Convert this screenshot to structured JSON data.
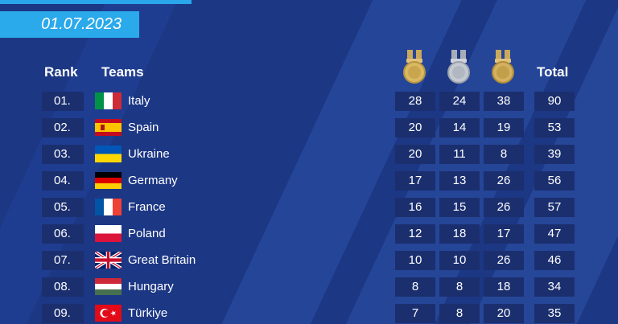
{
  "date": "01.07.2023",
  "headers": {
    "rank": "Rank",
    "teams": "Teams",
    "total": "Total"
  },
  "colors": {
    "background": "#1c3784",
    "accent": "#2aa9eb",
    "cell": "#1b2f6f"
  },
  "rows": [
    {
      "rank": "01.",
      "team": "Italy",
      "flag": "italy-flag",
      "gold": "28",
      "silver": "24",
      "bronze": "38",
      "total": "90"
    },
    {
      "rank": "02.",
      "team": "Spain",
      "flag": "spain-flag",
      "gold": "20",
      "silver": "14",
      "bronze": "19",
      "total": "53"
    },
    {
      "rank": "03.",
      "team": "Ukraine",
      "flag": "ukraine-flag",
      "gold": "20",
      "silver": "11",
      "bronze": "8",
      "total": "39"
    },
    {
      "rank": "04.",
      "team": "Germany",
      "flag": "germany-flag",
      "gold": "17",
      "silver": "13",
      "bronze": "26",
      "total": "56"
    },
    {
      "rank": "05.",
      "team": "France",
      "flag": "france-flag",
      "gold": "16",
      "silver": "15",
      "bronze": "26",
      "total": "57"
    },
    {
      "rank": "06.",
      "team": "Poland",
      "flag": "poland-flag",
      "gold": "12",
      "silver": "18",
      "bronze": "17",
      "total": "47"
    },
    {
      "rank": "07.",
      "team": "Great Britain",
      "flag": "great-britain-flag",
      "gold": "10",
      "silver": "10",
      "bronze": "26",
      "total": "46"
    },
    {
      "rank": "08.",
      "team": "Hungary",
      "flag": "hungary-flag",
      "gold": "8",
      "silver": "8",
      "bronze": "18",
      "total": "34"
    },
    {
      "rank": "09.",
      "team": "Türkiye",
      "flag": "turkiye-flag",
      "gold": "7",
      "silver": "8",
      "bronze": "20",
      "total": "35"
    }
  ]
}
